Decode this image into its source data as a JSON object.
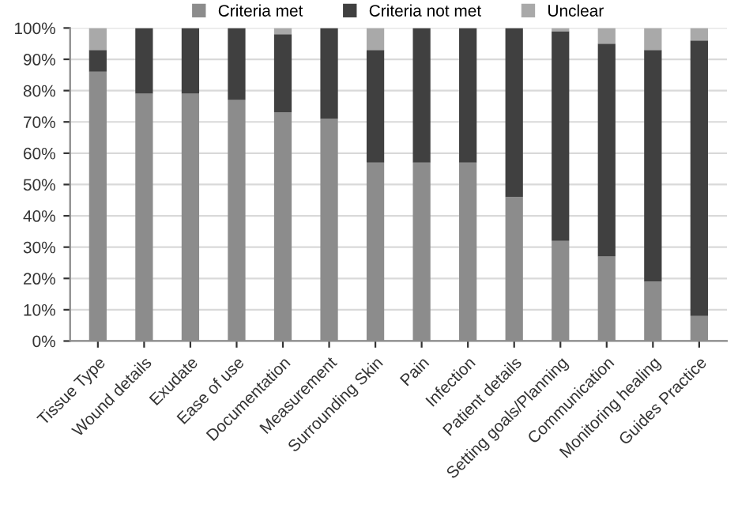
{
  "chart_data": {
    "type": "bar",
    "stacked": true,
    "categories": [
      "Tissue Type",
      "Wound details",
      "Exudate",
      "Ease of use",
      "Documentation",
      "Measurement",
      "Surrounding Skin",
      "Pain",
      "Infection",
      "Patient details",
      "Setting goals/Planning",
      "Communication",
      "Monitoring healing",
      "Guides Practice"
    ],
    "series": [
      {
        "name": "Criteria met",
        "color": "#8c8c8c",
        "values": [
          86,
          79,
          79,
          77,
          73,
          71,
          57,
          57,
          57,
          46,
          32,
          27,
          19,
          8
        ]
      },
      {
        "name": "Criteria not met",
        "color": "#404040",
        "values": [
          7,
          21,
          21,
          23,
          25,
          29,
          36,
          43,
          43,
          54,
          67,
          68,
          74,
          88
        ]
      },
      {
        "name": "Unclear",
        "color": "#a9a9a9",
        "values": [
          7,
          0,
          0,
          0,
          2,
          0,
          7,
          0,
          0,
          0,
          1,
          5,
          7,
          4
        ]
      }
    ],
    "ylim": [
      0,
      100
    ],
    "yticks": [
      {
        "value": 0,
        "label": "0%"
      },
      {
        "value": 10,
        "label": "10%"
      },
      {
        "value": 20,
        "label": "20%"
      },
      {
        "value": 30,
        "label": "30%"
      },
      {
        "value": 40,
        "label": "40%"
      },
      {
        "value": 50,
        "label": "50%"
      },
      {
        "value": 60,
        "label": "60%"
      },
      {
        "value": 70,
        "label": "70%"
      },
      {
        "value": 80,
        "label": "80%"
      },
      {
        "value": 90,
        "label": "90%"
      },
      {
        "value": 100,
        "label": "100%"
      }
    ],
    "grid": "y",
    "legend": "top"
  }
}
